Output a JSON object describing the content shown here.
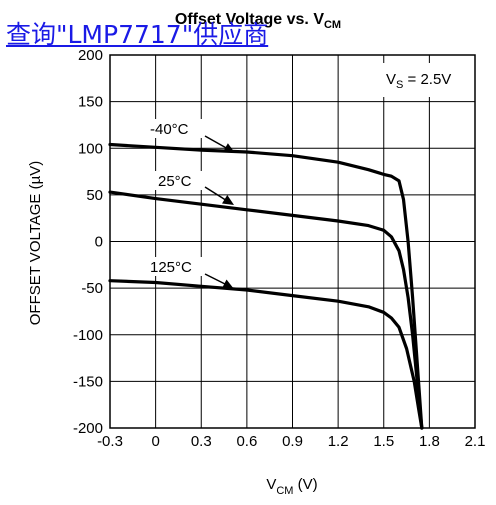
{
  "overlay_link": "查询\"LMP7717\"供应商",
  "chart_data": {
    "type": "line",
    "title": "Offset Voltage vs. V",
    "title_sub": "CM",
    "xlabel": "V",
    "xlabel_sub": "CM",
    "xlabel_unit": " (V)",
    "ylabel": "OFFSET VOLTAGE (µV)",
    "xlim": [
      -0.3,
      2.1
    ],
    "ylim": [
      -200,
      200
    ],
    "xticks": [
      -0.3,
      0,
      0.3,
      0.6,
      0.9,
      1.2,
      1.5,
      1.8,
      2.1
    ],
    "xtick_labels": [
      "-0.3",
      "0",
      "0.3",
      "0.6",
      "0.9",
      "1.2",
      "1.5",
      "1.8",
      "2.1"
    ],
    "yticks": [
      -200,
      -150,
      -100,
      -50,
      0,
      50,
      100,
      150,
      200
    ],
    "ytick_labels": [
      "-200",
      "-150",
      "-100",
      "-50",
      "0",
      "50",
      "100",
      "150",
      "200"
    ],
    "grid": true,
    "condition": {
      "prefix": "V",
      "sub": "S",
      "suffix": " = 2.5V"
    },
    "series": [
      {
        "name": "-40°C",
        "x": [
          -0.3,
          0,
          0.3,
          0.6,
          0.9,
          1.2,
          1.4,
          1.5,
          1.55,
          1.6,
          1.63,
          1.66,
          1.69,
          1.72,
          1.75
        ],
        "y": [
          104,
          101,
          98,
          96,
          92,
          85,
          77,
          72,
          70,
          65,
          45,
          0,
          -60,
          -130,
          -200
        ]
      },
      {
        "name": "25°C",
        "x": [
          -0.3,
          0,
          0.3,
          0.6,
          0.9,
          1.2,
          1.4,
          1.5,
          1.55,
          1.6,
          1.63,
          1.66,
          1.69,
          1.72,
          1.75
        ],
        "y": [
          53,
          46,
          40,
          34,
          28,
          22,
          17,
          12,
          5,
          -10,
          -30,
          -60,
          -100,
          -150,
          -200
        ]
      },
      {
        "name": "125°C",
        "x": [
          -0.3,
          0,
          0.3,
          0.6,
          0.9,
          1.2,
          1.4,
          1.5,
          1.55,
          1.6,
          1.65,
          1.7,
          1.73,
          1.75
        ],
        "y": [
          -42,
          -44,
          -48,
          -52,
          -58,
          -64,
          -70,
          -76,
          -82,
          -92,
          -115,
          -150,
          -180,
          -200
        ]
      }
    ],
    "annotations": [
      "-40°C",
      "25°C",
      "125°C"
    ]
  }
}
